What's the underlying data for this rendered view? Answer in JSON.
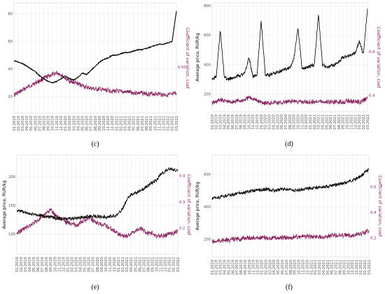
{
  "colors": {
    "price": "#000000",
    "cv": "#8b1a5c",
    "grid": "#ececec"
  },
  "x_labels": [
    "01.2019",
    "02.2019",
    "03.2019",
    "04.2019",
    "05.2019",
    "06.2019",
    "07.2019",
    "08.2019",
    "09.2019",
    "10.2019",
    "11.2019",
    "12.2019",
    "01.2020",
    "02.2020",
    "03.2020",
    "04.2020",
    "05.2020",
    "06.2020",
    "07.2020",
    "08.2020",
    "09.2020",
    "10.2020",
    "11.2020",
    "12.2020",
    "01.2021",
    "02.2021",
    "03.2021",
    "04.2021",
    "05.2021",
    "06.2021",
    "07.2021",
    "08.2021",
    "09.2021",
    "10.2021",
    "11.2021",
    "12.2021",
    "01.2022",
    "02.2022",
    "03.2022"
  ],
  "chart_data": [
    {
      "type": "line",
      "caption": "(c)",
      "ylabel": "",
      "y2label": "Coefficient of variation, coef",
      "y_ticks": [
        "20",
        "40",
        "60",
        "80"
      ],
      "y2_ticks": [
        "0.50"
      ],
      "ylim": [
        8,
        88
      ],
      "y2lim": [
        0,
        1.2
      ],
      "series": [
        {
          "values": [
            46,
            45,
            44,
            42,
            40,
            38,
            35,
            33,
            31,
            30,
            31,
            33,
            35,
            33,
            32,
            34,
            37,
            36,
            39,
            42,
            45,
            47,
            48,
            50,
            50,
            51,
            52,
            52,
            53,
            54,
            54,
            55,
            56,
            57,
            58,
            58,
            59,
            60,
            82
          ]
        },
        {
          "values": [
            0.2,
            0.22,
            0.25,
            0.28,
            0.3,
            0.33,
            0.35,
            0.38,
            0.4,
            0.42,
            0.44,
            0.42,
            0.38,
            0.35,
            0.33,
            0.32,
            0.3,
            0.28,
            0.27,
            0.26,
            0.26,
            0.25,
            0.25,
            0.24,
            0.24,
            0.23,
            0.23,
            0.23,
            0.22,
            0.22,
            0.22,
            0.21,
            0.21,
            0.21,
            0.21,
            0.2,
            0.2,
            0.2,
            0.22
          ]
        }
      ]
    },
    {
      "type": "line",
      "caption": "(d)",
      "ylabel": "Average price, RUR/kg",
      "y2label": "Coefficient of variation, coef",
      "y_ticks": [
        "200",
        "400",
        "600",
        "800"
      ],
      "y2_ticks": [
        "0.4",
        "0.8"
      ],
      "ylim": [
        80,
        820
      ],
      "y2lim": [
        0.25,
        1.25
      ],
      "series": [
        {
          "values": [
            300,
            320,
            630,
            310,
            300,
            310,
            320,
            330,
            340,
            450,
            320,
            330,
            700,
            330,
            330,
            340,
            350,
            360,
            370,
            380,
            440,
            650,
            370,
            380,
            390,
            400,
            740,
            400,
            380,
            390,
            400,
            420,
            450,
            460,
            470,
            480,
            560,
            470,
            780
          ]
        },
        {
          "values": [
            0.33,
            0.34,
            0.36,
            0.35,
            0.34,
            0.34,
            0.35,
            0.35,
            0.36,
            0.38,
            0.37,
            0.35,
            0.34,
            0.33,
            0.33,
            0.34,
            0.33,
            0.33,
            0.34,
            0.34,
            0.35,
            0.34,
            0.34,
            0.34,
            0.34,
            0.34,
            0.35,
            0.34,
            0.34,
            0.34,
            0.34,
            0.34,
            0.34,
            0.35,
            0.35,
            0.34,
            0.34,
            0.35,
            0.38
          ]
        }
      ]
    },
    {
      "type": "line",
      "caption": "(e)",
      "ylabel": "Average price, RUR/kg",
      "y2label": "Coefficient of variation, coef",
      "y_ticks": [
        "100",
        "150",
        "200"
      ],
      "y2_ticks": [
        "0.2",
        "0.3",
        "0.4"
      ],
      "ylim": [
        65,
        238
      ],
      "y2lim": [
        0.1,
        0.48
      ],
      "series": [
        {
          "values": [
            142,
            140,
            138,
            135,
            134,
            133,
            132,
            131,
            130,
            128,
            127,
            127,
            126,
            127,
            128,
            129,
            130,
            131,
            131,
            131,
            130,
            130,
            131,
            132,
            135,
            145,
            160,
            170,
            172,
            175,
            180,
            185,
            190,
            195,
            205,
            210,
            215,
            212,
            210
          ]
        },
        {
          "values": [
            0.18,
            0.19,
            0.2,
            0.21,
            0.22,
            0.23,
            0.24,
            0.26,
            0.27,
            0.25,
            0.24,
            0.23,
            0.22,
            0.22,
            0.21,
            0.22,
            0.23,
            0.24,
            0.23,
            0.22,
            0.21,
            0.21,
            0.2,
            0.19,
            0.18,
            0.17,
            0.17,
            0.18,
            0.19,
            0.2,
            0.19,
            0.18,
            0.18,
            0.17,
            0.17,
            0.17,
            0.18,
            0.18,
            0.19
          ]
        }
      ]
    },
    {
      "type": "line",
      "caption": "(f)",
      "ylabel": "Average price, RUR/kg",
      "y2label": "Coefficient of variation, coef",
      "y_ticks": [
        "200",
        "400",
        "600"
      ],
      "y2_ticks": [
        "0.2",
        "0.4",
        "0.6"
      ],
      "ylim": [
        90,
        720
      ],
      "y2lim": [
        0.05,
        0.85
      ],
      "series": [
        {
          "values": [
            450,
            455,
            460,
            465,
            470,
            475,
            480,
            485,
            490,
            495,
            500,
            505,
            505,
            510,
            505,
            500,
            505,
            510,
            510,
            505,
            500,
            505,
            510,
            515,
            515,
            520,
            520,
            525,
            525,
            530,
            535,
            540,
            545,
            555,
            565,
            575,
            590,
            610,
            630
          ]
        },
        {
          "values": [
            0.17,
            0.17,
            0.18,
            0.18,
            0.18,
            0.19,
            0.19,
            0.19,
            0.2,
            0.2,
            0.2,
            0.2,
            0.2,
            0.2,
            0.2,
            0.2,
            0.2,
            0.2,
            0.2,
            0.2,
            0.21,
            0.21,
            0.21,
            0.21,
            0.21,
            0.21,
            0.21,
            0.21,
            0.21,
            0.22,
            0.22,
            0.22,
            0.22,
            0.22,
            0.22,
            0.23,
            0.23,
            0.24,
            0.26
          ]
        }
      ]
    }
  ]
}
